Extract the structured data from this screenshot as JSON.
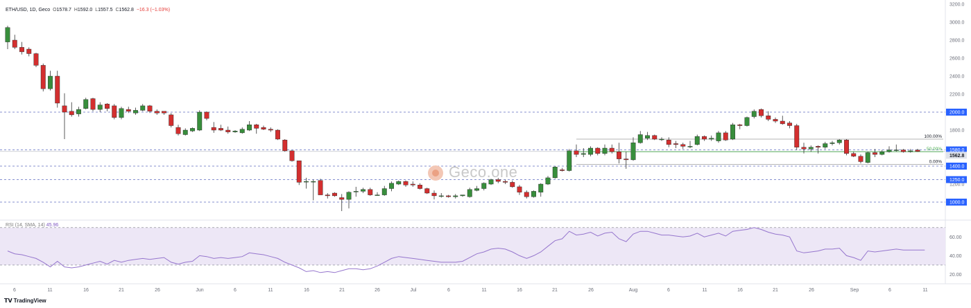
{
  "legend": {
    "symbol": "ETH/USD, 1D, Geco",
    "o_label": "O",
    "o_value": "1578.7",
    "h_label": "H",
    "h_value": "1592.0",
    "l_label": "L",
    "l_value": "1557.5",
    "c_label": "C",
    "c_value": "1562.8",
    "change": "−16.3 (−1.03%)"
  },
  "rsi_legend": {
    "label": "RSI (14, SMA, 14)",
    "value": "45.96"
  },
  "watermark": "Geco.one",
  "branding": {
    "logo_mark": "𝗧𝗩",
    "text": "TradingView"
  },
  "colors": {
    "up": "#388e3c",
    "down": "#d32f2f",
    "wick": "#333333",
    "level_line": "#5c6bc0",
    "rsi_line": "#9575cd",
    "rsi_band": "#ede7f6",
    "current_price_bg": "#e0e3eb",
    "level_label_bg": "#2962ff"
  },
  "chart_data": {
    "type": "candlestick",
    "symbol": "ETH/USD",
    "interval": "1D",
    "ylim": [
      800,
      3200
    ],
    "y_ticks": [
      "1000.0",
      "1200.0",
      "1400.0",
      "1600.0",
      "1800.0",
      "2000.0",
      "2200.0",
      "2400.0",
      "2600.0",
      "2800.0",
      "3000.0",
      "3200.0"
    ],
    "x_ticks": [
      "6",
      "11",
      "16",
      "21",
      "26",
      "Jun",
      "6",
      "11",
      "16",
      "21",
      "26",
      "Jul",
      "6",
      "11",
      "16",
      "21",
      "26",
      "Aug",
      "6",
      "11",
      "16",
      "21",
      "26",
      "Sep",
      "6",
      "11"
    ],
    "levels": [
      {
        "label": "2000.0",
        "value": 2000
      },
      {
        "label": "1580.0",
        "value": 1580
      },
      {
        "label": "1400.0",
        "value": 1400
      },
      {
        "label": "1250.0",
        "value": 1250
      },
      {
        "label": "1000.0",
        "value": 1000
      }
    ],
    "current_price": {
      "label": "1562.8",
      "value": 1562.8
    },
    "fib": [
      {
        "label": "100.00%",
        "value": 1700
      },
      {
        "label": "50.00%",
        "value": 1560
      },
      {
        "label": "0.00%",
        "value": 1420
      }
    ],
    "candles": [
      {
        "o": 2780,
        "h": 2960,
        "l": 2700,
        "c": 2940
      },
      {
        "o": 2800,
        "h": 2860,
        "l": 2700,
        "c": 2720
      },
      {
        "o": 2720,
        "h": 2780,
        "l": 2640,
        "c": 2670
      },
      {
        "o": 2700,
        "h": 2720,
        "l": 2620,
        "c": 2650
      },
      {
        "o": 2650,
        "h": 2660,
        "l": 2500,
        "c": 2520
      },
      {
        "o": 2520,
        "h": 2540,
        "l": 2230,
        "c": 2260
      },
      {
        "o": 2260,
        "h": 2460,
        "l": 2240,
        "c": 2400
      },
      {
        "o": 2400,
        "h": 2460,
        "l": 2050,
        "c": 2100
      },
      {
        "o": 2070,
        "h": 2210,
        "l": 1700,
        "c": 2000
      },
      {
        "o": 2010,
        "h": 2110,
        "l": 1950,
        "c": 1970
      },
      {
        "o": 1980,
        "h": 2060,
        "l": 1950,
        "c": 2030
      },
      {
        "o": 2040,
        "h": 2160,
        "l": 2030,
        "c": 2140
      },
      {
        "o": 2150,
        "h": 2160,
        "l": 2010,
        "c": 2030
      },
      {
        "o": 2030,
        "h": 2110,
        "l": 2000,
        "c": 2080
      },
      {
        "o": 2090,
        "h": 2100,
        "l": 2010,
        "c": 2040
      },
      {
        "o": 2070,
        "h": 2090,
        "l": 1920,
        "c": 1940
      },
      {
        "o": 1940,
        "h": 2060,
        "l": 1920,
        "c": 2040
      },
      {
        "o": 2030,
        "h": 2060,
        "l": 1990,
        "c": 2010
      },
      {
        "o": 1990,
        "h": 2050,
        "l": 1970,
        "c": 2020
      },
      {
        "o": 2020,
        "h": 2090,
        "l": 2010,
        "c": 2070
      },
      {
        "o": 2070,
        "h": 2080,
        "l": 1990,
        "c": 2010
      },
      {
        "o": 2010,
        "h": 2030,
        "l": 1970,
        "c": 1990
      },
      {
        "o": 2010,
        "h": 2010,
        "l": 1970,
        "c": 1990
      },
      {
        "o": 1970,
        "h": 1990,
        "l": 1830,
        "c": 1850
      },
      {
        "o": 1830,
        "h": 1860,
        "l": 1740,
        "c": 1760
      },
      {
        "o": 1750,
        "h": 1820,
        "l": 1740,
        "c": 1800
      },
      {
        "o": 1790,
        "h": 1830,
        "l": 1780,
        "c": 1820
      },
      {
        "o": 1800,
        "h": 2020,
        "l": 1790,
        "c": 2000
      },
      {
        "o": 2000,
        "h": 2010,
        "l": 1910,
        "c": 1930
      },
      {
        "o": 1830,
        "h": 1890,
        "l": 1770,
        "c": 1800
      },
      {
        "o": 1820,
        "h": 1860,
        "l": 1790,
        "c": 1800
      },
      {
        "o": 1800,
        "h": 1840,
        "l": 1760,
        "c": 1780
      },
      {
        "o": 1780,
        "h": 1800,
        "l": 1770,
        "c": 1790
      },
      {
        "o": 1770,
        "h": 1830,
        "l": 1760,
        "c": 1810
      },
      {
        "o": 1800,
        "h": 1900,
        "l": 1790,
        "c": 1860
      },
      {
        "o": 1860,
        "h": 1870,
        "l": 1760,
        "c": 1820
      },
      {
        "o": 1830,
        "h": 1850,
        "l": 1800,
        "c": 1810
      },
      {
        "o": 1810,
        "h": 1830,
        "l": 1780,
        "c": 1800
      },
      {
        "o": 1800,
        "h": 1810,
        "l": 1690,
        "c": 1700
      },
      {
        "o": 1690,
        "h": 1700,
        "l": 1560,
        "c": 1570
      },
      {
        "o": 1570,
        "h": 1580,
        "l": 1450,
        "c": 1460
      },
      {
        "o": 1460,
        "h": 1460,
        "l": 1190,
        "c": 1220
      },
      {
        "o": 1230,
        "h": 1270,
        "l": 1150,
        "c": 1230
      },
      {
        "o": 1230,
        "h": 1250,
        "l": 1020,
        "c": 1230
      },
      {
        "o": 1240,
        "h": 1260,
        "l": 1090,
        "c": 1080
      },
      {
        "o": 1080,
        "h": 1100,
        "l": 1040,
        "c": 1070
      },
      {
        "o": 1100,
        "h": 1110,
        "l": 1060,
        "c": 1070
      },
      {
        "o": 1050,
        "h": 1090,
        "l": 900,
        "c": 1030
      },
      {
        "o": 1030,
        "h": 1120,
        "l": 930,
        "c": 1110
      },
      {
        "o": 1120,
        "h": 1170,
        "l": 1060,
        "c": 1120
      },
      {
        "o": 1120,
        "h": 1160,
        "l": 1100,
        "c": 1140
      },
      {
        "o": 1140,
        "h": 1160,
        "l": 1070,
        "c": 1080
      },
      {
        "o": 1080,
        "h": 1110,
        "l": 1080,
        "c": 1080
      },
      {
        "o": 1080,
        "h": 1180,
        "l": 1070,
        "c": 1150
      },
      {
        "o": 1150,
        "h": 1230,
        "l": 1120,
        "c": 1210
      },
      {
        "o": 1200,
        "h": 1240,
        "l": 1190,
        "c": 1230
      },
      {
        "o": 1230,
        "h": 1240,
        "l": 1170,
        "c": 1190
      },
      {
        "o": 1200,
        "h": 1230,
        "l": 1170,
        "c": 1190
      },
      {
        "o": 1190,
        "h": 1210,
        "l": 1140,
        "c": 1150
      },
      {
        "o": 1150,
        "h": 1160,
        "l": 1090,
        "c": 1100
      },
      {
        "o": 1100,
        "h": 1130,
        "l": 1030,
        "c": 1070
      },
      {
        "o": 1070,
        "h": 1100,
        "l": 1050,
        "c": 1070
      },
      {
        "o": 1070,
        "h": 1080,
        "l": 1050,
        "c": 1060
      },
      {
        "o": 1060,
        "h": 1090,
        "l": 1040,
        "c": 1070
      },
      {
        "o": 1070,
        "h": 1080,
        "l": 1060,
        "c": 1080
      },
      {
        "o": 1060,
        "h": 1160,
        "l": 1050,
        "c": 1140
      },
      {
        "o": 1130,
        "h": 1180,
        "l": 1120,
        "c": 1150
      },
      {
        "o": 1150,
        "h": 1220,
        "l": 1130,
        "c": 1210
      },
      {
        "o": 1200,
        "h": 1260,
        "l": 1190,
        "c": 1250
      },
      {
        "o": 1250,
        "h": 1270,
        "l": 1210,
        "c": 1230
      },
      {
        "o": 1230,
        "h": 1250,
        "l": 1200,
        "c": 1220
      },
      {
        "o": 1220,
        "h": 1240,
        "l": 1160,
        "c": 1170
      },
      {
        "o": 1170,
        "h": 1190,
        "l": 1080,
        "c": 1110
      },
      {
        "o": 1110,
        "h": 1130,
        "l": 1040,
        "c": 1060
      },
      {
        "o": 1060,
        "h": 1130,
        "l": 1050,
        "c": 1120
      },
      {
        "o": 1110,
        "h": 1210,
        "l": 1060,
        "c": 1200
      },
      {
        "o": 1200,
        "h": 1290,
        "l": 1190,
        "c": 1270
      },
      {
        "o": 1270,
        "h": 1400,
        "l": 1260,
        "c": 1390
      },
      {
        "o": 1360,
        "h": 1380,
        "l": 1340,
        "c": 1350
      },
      {
        "o": 1350,
        "h": 1590,
        "l": 1340,
        "c": 1570
      },
      {
        "o": 1570,
        "h": 1640,
        "l": 1500,
        "c": 1530
      },
      {
        "o": 1530,
        "h": 1600,
        "l": 1500,
        "c": 1540
      },
      {
        "o": 1530,
        "h": 1620,
        "l": 1510,
        "c": 1600
      },
      {
        "o": 1600,
        "h": 1610,
        "l": 1520,
        "c": 1540
      },
      {
        "o": 1540,
        "h": 1640,
        "l": 1520,
        "c": 1600
      },
      {
        "o": 1600,
        "h": 1640,
        "l": 1540,
        "c": 1560
      },
      {
        "o": 1560,
        "h": 1660,
        "l": 1430,
        "c": 1480
      },
      {
        "o": 1480,
        "h": 1560,
        "l": 1370,
        "c": 1470
      },
      {
        "o": 1470,
        "h": 1720,
        "l": 1460,
        "c": 1660
      },
      {
        "o": 1660,
        "h": 1790,
        "l": 1650,
        "c": 1750
      },
      {
        "o": 1710,
        "h": 1780,
        "l": 1690,
        "c": 1740
      },
      {
        "o": 1740,
        "h": 1750,
        "l": 1690,
        "c": 1700
      },
      {
        "o": 1700,
        "h": 1720,
        "l": 1680,
        "c": 1700
      },
      {
        "o": 1690,
        "h": 1720,
        "l": 1610,
        "c": 1640
      },
      {
        "o": 1650,
        "h": 1680,
        "l": 1600,
        "c": 1640
      },
      {
        "o": 1640,
        "h": 1660,
        "l": 1590,
        "c": 1620
      },
      {
        "o": 1620,
        "h": 1680,
        "l": 1600,
        "c": 1620
      },
      {
        "o": 1640,
        "h": 1750,
        "l": 1630,
        "c": 1730
      },
      {
        "o": 1730,
        "h": 1740,
        "l": 1680,
        "c": 1700
      },
      {
        "o": 1700,
        "h": 1740,
        "l": 1680,
        "c": 1710
      },
      {
        "o": 1680,
        "h": 1790,
        "l": 1660,
        "c": 1770
      },
      {
        "o": 1770,
        "h": 1790,
        "l": 1680,
        "c": 1690
      },
      {
        "o": 1700,
        "h": 1880,
        "l": 1690,
        "c": 1860
      },
      {
        "o": 1860,
        "h": 1870,
        "l": 1810,
        "c": 1850
      },
      {
        "o": 1850,
        "h": 1950,
        "l": 1840,
        "c": 1940
      },
      {
        "o": 1950,
        "h": 2030,
        "l": 1930,
        "c": 2010
      },
      {
        "o": 2030,
        "h": 2040,
        "l": 1940,
        "c": 1960
      },
      {
        "o": 1960,
        "h": 2010,
        "l": 1900,
        "c": 1920
      },
      {
        "o": 1920,
        "h": 1940,
        "l": 1880,
        "c": 1900
      },
      {
        "o": 1900,
        "h": 1960,
        "l": 1860,
        "c": 1870
      },
      {
        "o": 1880,
        "h": 1900,
        "l": 1820,
        "c": 1850
      },
      {
        "o": 1850,
        "h": 1870,
        "l": 1580,
        "c": 1610
      },
      {
        "o": 1610,
        "h": 1660,
        "l": 1540,
        "c": 1590
      },
      {
        "o": 1590,
        "h": 1630,
        "l": 1560,
        "c": 1610
      },
      {
        "o": 1620,
        "h": 1630,
        "l": 1540,
        "c": 1610
      },
      {
        "o": 1610,
        "h": 1670,
        "l": 1590,
        "c": 1650
      },
      {
        "o": 1650,
        "h": 1680,
        "l": 1630,
        "c": 1660
      },
      {
        "o": 1660,
        "h": 1700,
        "l": 1640,
        "c": 1690
      },
      {
        "o": 1690,
        "h": 1700,
        "l": 1520,
        "c": 1540
      },
      {
        "o": 1540,
        "h": 1560,
        "l": 1500,
        "c": 1510
      },
      {
        "o": 1510,
        "h": 1530,
        "l": 1430,
        "c": 1450
      },
      {
        "o": 1440,
        "h": 1560,
        "l": 1430,
        "c": 1550
      },
      {
        "o": 1550,
        "h": 1590,
        "l": 1500,
        "c": 1530
      },
      {
        "o": 1530,
        "h": 1580,
        "l": 1520,
        "c": 1560
      },
      {
        "o": 1560,
        "h": 1620,
        "l": 1550,
        "c": 1580
      },
      {
        "o": 1580,
        "h": 1640,
        "l": 1560,
        "c": 1580
      },
      {
        "o": 1580,
        "h": 1590,
        "l": 1550,
        "c": 1560
      },
      {
        "o": 1560,
        "h": 1590,
        "l": 1550,
        "c": 1570
      },
      {
        "o": 1578.7,
        "h": 1592.0,
        "l": 1557.5,
        "c": 1562.8
      }
    ],
    "rsi": {
      "ylim": [
        10,
        75
      ],
      "y_ticks": [
        "20.00",
        "40.00",
        "60.00"
      ],
      "band": [
        30,
        70
      ],
      "values": [
        45,
        42,
        41,
        39,
        37,
        33,
        28,
        34,
        28,
        27,
        28,
        30,
        32,
        34,
        31,
        35,
        33,
        35,
        36,
        37,
        36,
        37,
        38,
        33,
        31,
        33,
        34,
        40,
        39,
        37,
        38,
        37,
        38,
        39,
        43,
        42,
        41,
        39,
        37,
        33,
        30,
        27,
        23,
        24,
        22,
        23,
        22,
        24,
        26,
        26,
        25,
        26,
        29,
        33,
        37,
        39,
        38,
        37,
        36,
        35,
        34,
        33,
        33,
        33,
        34,
        38,
        42,
        44,
        47,
        48,
        47,
        44,
        40,
        37,
        40,
        44,
        50,
        56,
        58,
        66,
        62,
        63,
        65,
        61,
        64,
        65,
        58,
        55,
        63,
        66,
        66,
        64,
        62,
        62,
        61,
        60,
        61,
        64,
        60,
        62,
        64,
        61,
        66,
        67,
        68,
        70,
        68,
        65,
        63,
        62,
        60,
        45,
        43,
        44,
        45,
        47,
        47,
        48,
        40,
        38,
        35,
        45,
        44,
        45,
        46,
        47,
        46,
        46,
        46,
        45.96
      ]
    }
  }
}
